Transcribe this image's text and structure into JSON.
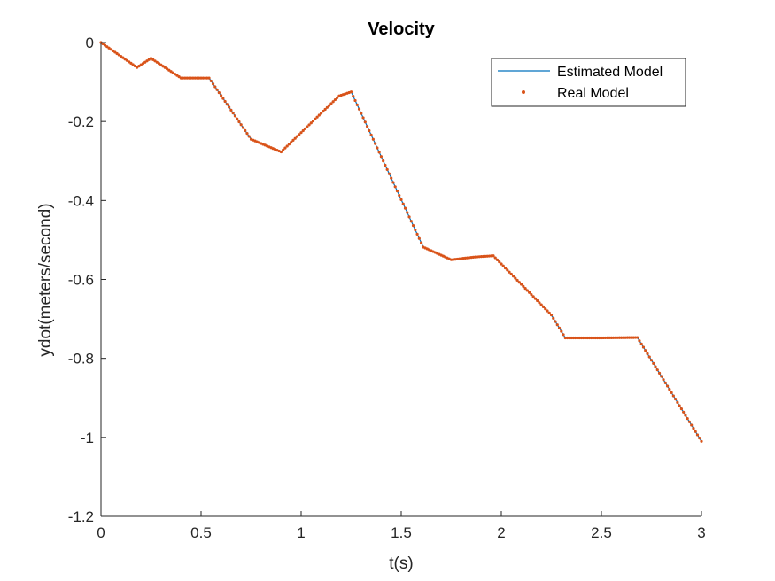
{
  "chart_data": {
    "type": "line",
    "title": "Velocity",
    "xlabel": "t(s)",
    "ylabel": "ydot(meters/second)",
    "xlim": [
      0,
      3
    ],
    "ylim": [
      -1.2,
      0
    ],
    "xticks": [
      0,
      0.5,
      1,
      1.5,
      2,
      2.5,
      3
    ],
    "xtick_labels": [
      "0",
      "0.5",
      "1",
      "1.5",
      "2",
      "2.5",
      "3"
    ],
    "yticks": [
      0,
      -0.2,
      -0.4,
      -0.6,
      -0.8,
      -1,
      -1.2
    ],
    "ytick_labels": [
      "0",
      "-0.2",
      "-0.4",
      "-0.6",
      "-0.8",
      "-1",
      "-1.2"
    ],
    "grid": false,
    "legend_position": "top-right",
    "series": [
      {
        "name": "Estimated Model",
        "style": "line",
        "color": "#0072BD",
        "x": [
          0,
          0.18,
          0.25,
          0.4,
          0.54,
          0.75,
          0.9,
          1.19,
          1.25,
          1.61,
          1.75,
          1.87,
          1.96,
          2.25,
          2.32,
          2.5,
          2.68,
          3.0
        ],
        "y": [
          0,
          -0.063,
          -0.04,
          -0.09,
          -0.09,
          -0.245,
          -0.277,
          -0.135,
          -0.125,
          -0.518,
          -0.55,
          -0.543,
          -0.54,
          -0.69,
          -0.748,
          -0.748,
          -0.747,
          -1.01
        ]
      },
      {
        "name": "Real Model",
        "style": "dots",
        "color": "#D95319",
        "x": [
          0,
          0.18,
          0.25,
          0.4,
          0.54,
          0.75,
          0.9,
          1.19,
          1.25,
          1.61,
          1.75,
          1.87,
          1.96,
          2.25,
          2.32,
          2.5,
          2.68,
          3.0
        ],
        "y": [
          0,
          -0.063,
          -0.04,
          -0.09,
          -0.09,
          -0.245,
          -0.277,
          -0.135,
          -0.125,
          -0.518,
          -0.55,
          -0.543,
          -0.54,
          -0.69,
          -0.748,
          -0.748,
          -0.747,
          -1.01
        ]
      }
    ]
  }
}
